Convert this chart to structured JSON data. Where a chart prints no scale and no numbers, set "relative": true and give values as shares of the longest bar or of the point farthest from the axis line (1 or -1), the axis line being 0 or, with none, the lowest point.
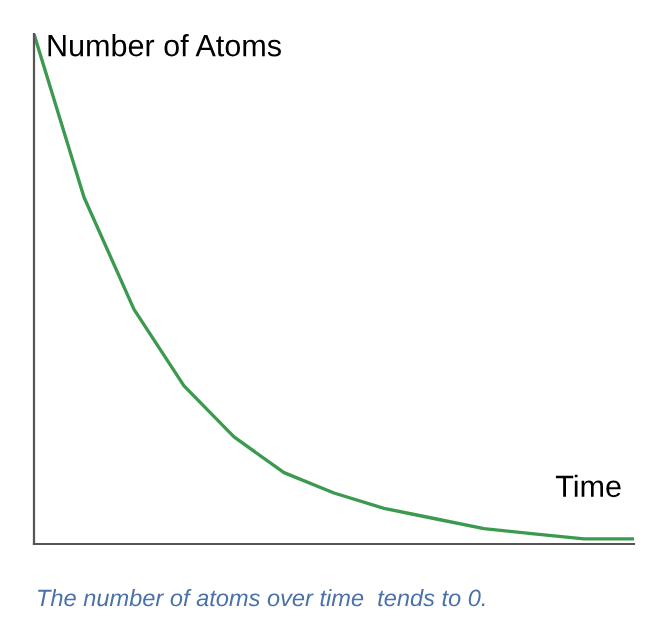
{
  "chart_data": {
    "type": "line",
    "relative": true,
    "ylabel": "Number of Atoms",
    "xlabel": "Time",
    "categories": [
      null,
      null,
      null,
      null,
      null,
      null,
      null,
      null,
      null,
      null,
      null,
      null,
      null
    ],
    "series": [
      {
        "color": "#3c9a50",
        "values": [
          1,
          0.68,
          0.46,
          0.31,
          0.21,
          0.14,
          0.1,
          0.07,
          0.05,
          0.03,
          0.02,
          0.01,
          0.01
        ]
      }
    ],
    "annotations": [
      "The number of atoms over time  tends to 0."
    ],
    "marker": "none",
    "line_style": "solid",
    "grid": false,
    "legend": false
  }
}
